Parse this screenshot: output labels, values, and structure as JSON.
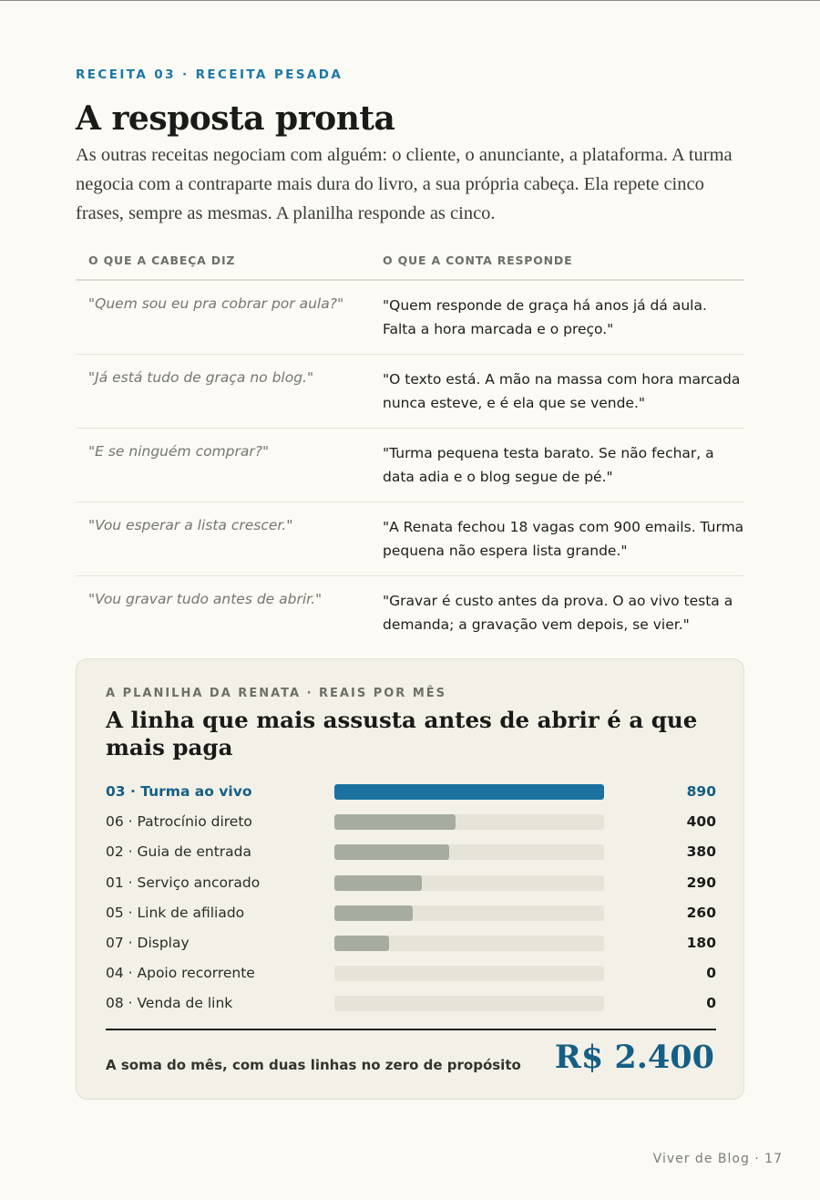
{
  "eyebrow": "RECEITA 03 · RECEITA PESADA",
  "title": "A resposta pronta",
  "intro": "As outras receitas negociam com alguém: o cliente, o anunciante, a plataforma. A turma negocia com a contraparte mais dura do livro, a sua própria cabeça. Ela repete cinco frases, sempre as mesmas. A planilha responde as cinco.",
  "table": {
    "col_head": "O QUE A CABEÇA DIZ",
    "col_answer": "O QUE A CONTA RESPONDE",
    "rows": [
      {
        "head": "\"Quem sou eu pra cobrar por aula?\"",
        "answer": "\"Quem responde de graça há anos já dá aula. Falta a hora marcada e o preço.\""
      },
      {
        "head": "\"Já está tudo de graça no blog.\"",
        "answer": "\"O texto está. A mão na massa com hora marcada nunca esteve, e é ela que se vende.\""
      },
      {
        "head": "\"E se ninguém comprar?\"",
        "answer": "\"Turma pequena testa barato. Se não fechar, a data adia e o blog segue de pé.\""
      },
      {
        "head": "\"Vou esperar a lista crescer.\"",
        "answer": "\"A Renata fechou 18 vagas com 900 emails. Turma pequena não espera lista grande.\""
      },
      {
        "head": "\"Vou gravar tudo antes de abrir.\"",
        "answer": "\"Gravar é custo antes da prova. O ao vivo testa a demanda; a gravação vem depois, se vier.\""
      }
    ]
  },
  "card": {
    "eyebrow": "A PLANILHA DA RENATA · REAIS POR MÊS",
    "title": "A linha que mais assusta antes de abrir é a que mais paga",
    "sum_label": "A soma do mês, com duas linhas no zero de propósito",
    "sum_value": "R$ 2.400",
    "highlight_color": "#1b72a0",
    "bar_color": "#a6aca0"
  },
  "chart_data": {
    "type": "bar",
    "orientation": "horizontal",
    "categories": [
      "03 · Turma ao vivo",
      "06 · Patrocínio direto",
      "02 · Guia de entrada",
      "01 · Serviço ancorado",
      "05 · Link de afiliado",
      "07 · Display",
      "04 · Apoio recorrente",
      "08 · Venda de link"
    ],
    "values": [
      890,
      400,
      380,
      290,
      260,
      180,
      0,
      0
    ],
    "xlim": [
      0,
      890
    ],
    "highlighted": "03 · Turma ao vivo"
  },
  "footer": "Viver de Blog · 17"
}
